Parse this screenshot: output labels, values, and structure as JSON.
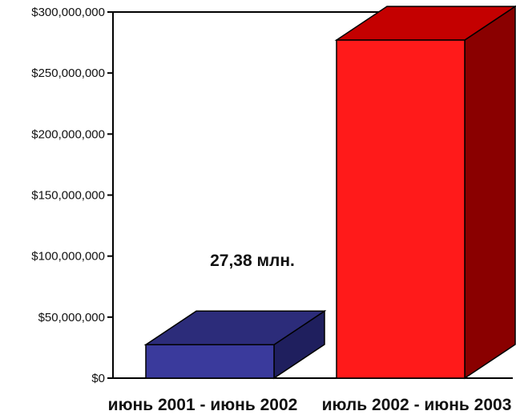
{
  "chart_data": {
    "type": "bar",
    "style": "3d",
    "categories": [
      "июнь 2001 - июнь 2002",
      "июль 2002 - июнь 2003"
    ],
    "values": [
      27380000,
      277000000
    ],
    "bar_colors": [
      "#3a3a9c",
      "#ff1a1a"
    ],
    "bar_side_colors": [
      "#1f1f5e",
      "#8a0000"
    ],
    "bar_top_colors": [
      "#2c2c7a",
      "#c40000"
    ],
    "ylim": [
      0,
      300000000
    ],
    "yticks": [
      0,
      50000000,
      100000000,
      150000000,
      200000000,
      250000000,
      300000000
    ],
    "ytick_labels": [
      "$0",
      "$50,000,000",
      "$100,000,000",
      "$150,000,000",
      "$200,000,000",
      "$250,000,000",
      "$300,000,000"
    ],
    "annotations": [
      {
        "text": "27,38 млн.",
        "category_index": 0
      }
    ],
    "grid": false,
    "title": "",
    "xlabel": "",
    "ylabel": ""
  }
}
